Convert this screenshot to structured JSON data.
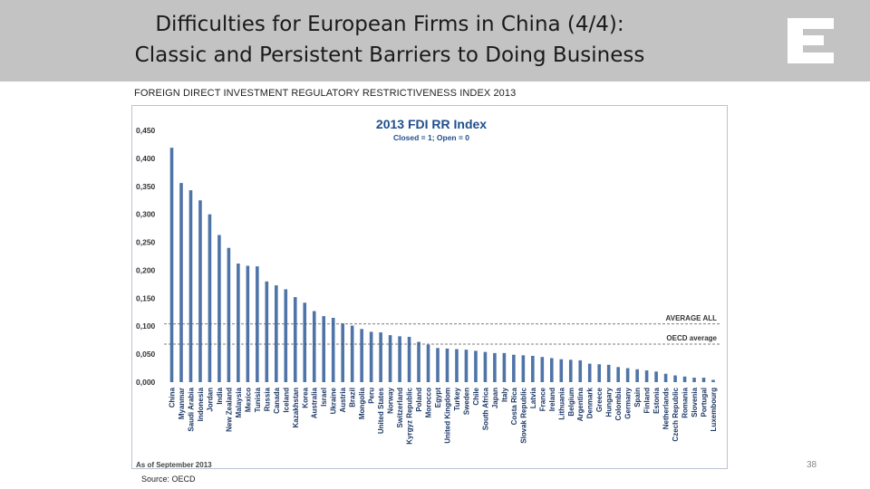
{
  "slide": {
    "title_line1": "Difficulties for European Firms in China (4/4):",
    "title_line2": "Classic and Persistent Barriers to Doing Business",
    "subtitle": "FOREIGN DIRECT INVESTMENT REGULATORY RESTRICTIVENESS INDEX 2013",
    "source": "Source: OECD",
    "page_number": "38",
    "logo_icon": "letter-e-logo-icon"
  },
  "colors": {
    "header_band": "#c3c3c3",
    "bar": "#4f74a8",
    "title_blue": "#1f4e8c",
    "reference_line": "#555555"
  },
  "chart_data": {
    "type": "bar",
    "title": "2013 FDI RR Index",
    "subtitle": "Closed = 1; Open = 0",
    "footnote": "As of September 2013",
    "ylim": [
      0,
      0.45
    ],
    "ytick_labels": [
      "0,000",
      "0,050",
      "0,100",
      "0,150",
      "0,200",
      "0,250",
      "0,300",
      "0,350",
      "0,400",
      "0,450"
    ],
    "grid": false,
    "categories": [
      "China",
      "Myanmar",
      "Saudi Arabia",
      "Indonesia",
      "Jordan",
      "India",
      "New Zealand",
      "Malaysia",
      "Mexico",
      "Tunisia",
      "Russia",
      "Canada",
      "Iceland",
      "Kazakhstan",
      "Korea",
      "Australia",
      "Israel",
      "Ukraine",
      "Austria",
      "Brazil",
      "Mongolia",
      "Peru",
      "United States",
      "Norway",
      "Switzerland",
      "Kyrgyz Republic",
      "Poland",
      "Morocco",
      "Egypt",
      "United Kingdom",
      "Turkey",
      "Sweden",
      "Chile",
      "South Africa",
      "Japan",
      "Italy",
      "Costa Rica",
      "Slovak Republic",
      "Latvia",
      "France",
      "Ireland",
      "Lithuania",
      "Belgium",
      "Argentina",
      "Denmark",
      "Greece",
      "Hungary",
      "Colombia",
      "Germany",
      "Spain",
      "Finland",
      "Estonia",
      "Netherlands",
      "Czech Republic",
      "Romania",
      "Slovenia",
      "Portugal",
      "Luxembourg"
    ],
    "values": [
      0.419,
      0.356,
      0.343,
      0.325,
      0.3,
      0.263,
      0.24,
      0.212,
      0.208,
      0.207,
      0.18,
      0.173,
      0.166,
      0.152,
      0.142,
      0.127,
      0.118,
      0.115,
      0.105,
      0.101,
      0.095,
      0.09,
      0.089,
      0.084,
      0.082,
      0.081,
      0.072,
      0.067,
      0.061,
      0.06,
      0.059,
      0.058,
      0.056,
      0.054,
      0.052,
      0.052,
      0.049,
      0.048,
      0.047,
      0.045,
      0.043,
      0.041,
      0.04,
      0.039,
      0.033,
      0.032,
      0.031,
      0.027,
      0.025,
      0.023,
      0.021,
      0.019,
      0.015,
      0.012,
      0.01,
      0.008,
      0.008,
      0.004
    ],
    "reference_lines": [
      {
        "label": "AVERAGE ALL",
        "value": 0.104
      },
      {
        "label": "OECD average",
        "value": 0.068
      }
    ]
  }
}
